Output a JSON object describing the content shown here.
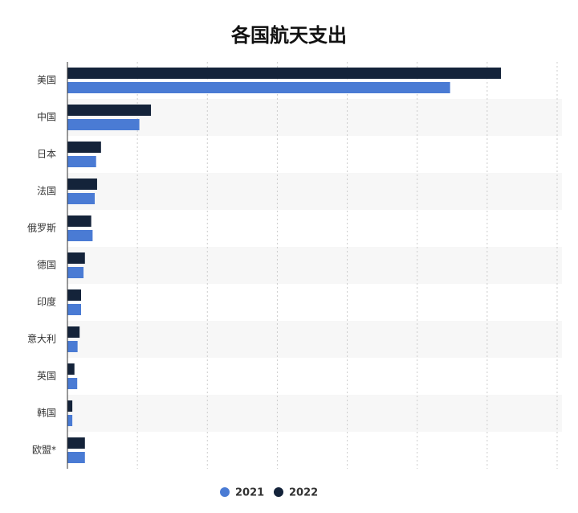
{
  "chart_data": {
    "type": "barh",
    "title": "各国航天支出",
    "categories": [
      "美国",
      "中国",
      "日本",
      "法国",
      "俄罗斯",
      "德国",
      "印度",
      "意大利",
      "英国",
      "韩国",
      "欧盟*"
    ],
    "series": [
      {
        "name": "2021",
        "color": "#4a7bd4",
        "values": [
          54700,
          10280,
          4100,
          3900,
          3600,
          2300,
          1950,
          1450,
          1400,
          700,
          2500
        ]
      },
      {
        "name": "2022",
        "color": "#14233a",
        "values": [
          61970,
          11940,
          4800,
          4240,
          3400,
          2500,
          1950,
          1740,
          1000,
          700,
          2500
        ]
      }
    ],
    "xlim": [
      0,
      70000
    ],
    "xticks": [
      10000,
      20000,
      30000,
      40000,
      50000,
      60000,
      70000
    ],
    "xtick_labels": false,
    "grid": true,
    "legend": "bottom"
  }
}
